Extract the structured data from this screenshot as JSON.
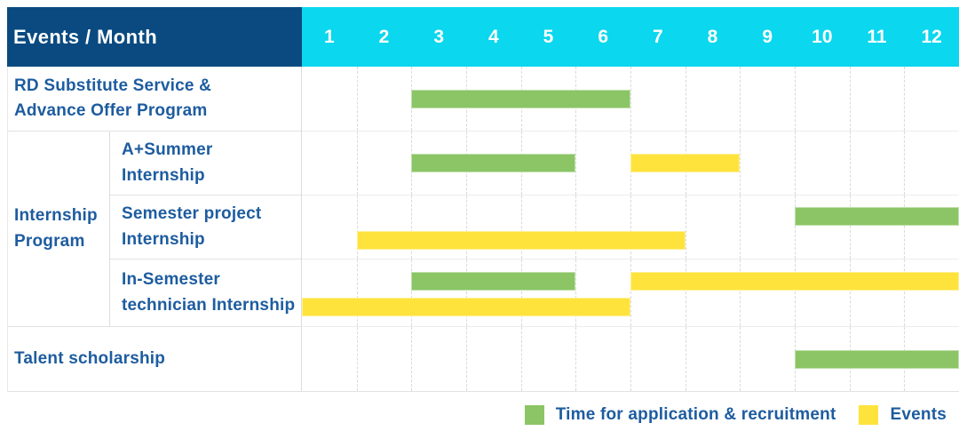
{
  "header": {
    "title": "Events / Month",
    "months": [
      "1",
      "2",
      "3",
      "4",
      "5",
      "6",
      "7",
      "8",
      "9",
      "10",
      "11",
      "12"
    ]
  },
  "colors": {
    "header_navy": "#0a4a80",
    "header_cyan": "#0bd7ee",
    "label_blue": "#1d5c9f",
    "bar_green": "#8bc565",
    "bar_yellow": "#ffe33d"
  },
  "legend": {
    "items": [
      {
        "series": "application",
        "label": "Time for application & recruitment",
        "color": "#8bc565"
      },
      {
        "series": "events",
        "label": "Events",
        "color": "#ffe33d"
      }
    ]
  },
  "chart_data": {
    "type": "bar",
    "subtype": "gantt",
    "title": "Events / Month",
    "x_axis": {
      "label": "Month",
      "range": [
        1,
        12
      ],
      "ticks": [
        "1",
        "2",
        "3",
        "4",
        "5",
        "6",
        "7",
        "8",
        "9",
        "10",
        "11",
        "12"
      ]
    },
    "legend_entries": [
      "Time for application & recruitment",
      "Events"
    ],
    "legend_position": "bottom-right",
    "grid": "dashed-vertical-month-lines",
    "groups": [
      {
        "label_lines": [
          "Internship",
          "Program"
        ],
        "label": "Internship Program",
        "row_start": 1,
        "row_end": 3
      }
    ],
    "rows": [
      {
        "label": "RD Substitute Service & Advance Offer Program",
        "label_lines": [
          "RD Substitute Service &",
          "Advance Offer Program"
        ],
        "in_group": false,
        "bars": [
          {
            "series": "application",
            "start_month": 3,
            "end_month": 6,
            "lane": "center"
          }
        ]
      },
      {
        "label": "A+Summer Internship",
        "label_lines": [
          "A+Summer",
          "Internship"
        ],
        "in_group": true,
        "bars": [
          {
            "series": "application",
            "start_month": 3,
            "end_month": 5,
            "lane": "center"
          },
          {
            "series": "events",
            "start_month": 7,
            "end_month": 8,
            "lane": "center"
          }
        ]
      },
      {
        "label": "Semester project Internship",
        "label_lines": [
          "Semester project",
          "Internship"
        ],
        "in_group": true,
        "bars": [
          {
            "series": "application",
            "start_month": 10,
            "end_month": 12,
            "lane": "upper"
          },
          {
            "series": "events",
            "start_month": 2,
            "end_month": 7,
            "lane": "lower"
          }
        ]
      },
      {
        "label": "In-Semester technician Internship",
        "label_lines": [
          "In-Semester",
          "technician Internship"
        ],
        "in_group": true,
        "bars": [
          {
            "series": "application",
            "start_month": 3,
            "end_month": 5,
            "lane": "upper"
          },
          {
            "series": "events",
            "start_month": 7,
            "end_month": 12,
            "lane": "upper"
          },
          {
            "series": "events",
            "start_month": 1,
            "end_month": 6,
            "lane": "lower"
          }
        ]
      },
      {
        "label": "Talent scholarship",
        "label_lines": [
          "Talent scholarship"
        ],
        "in_group": false,
        "bars": [
          {
            "series": "application",
            "start_month": 10,
            "end_month": 12,
            "lane": "center"
          }
        ]
      }
    ]
  }
}
